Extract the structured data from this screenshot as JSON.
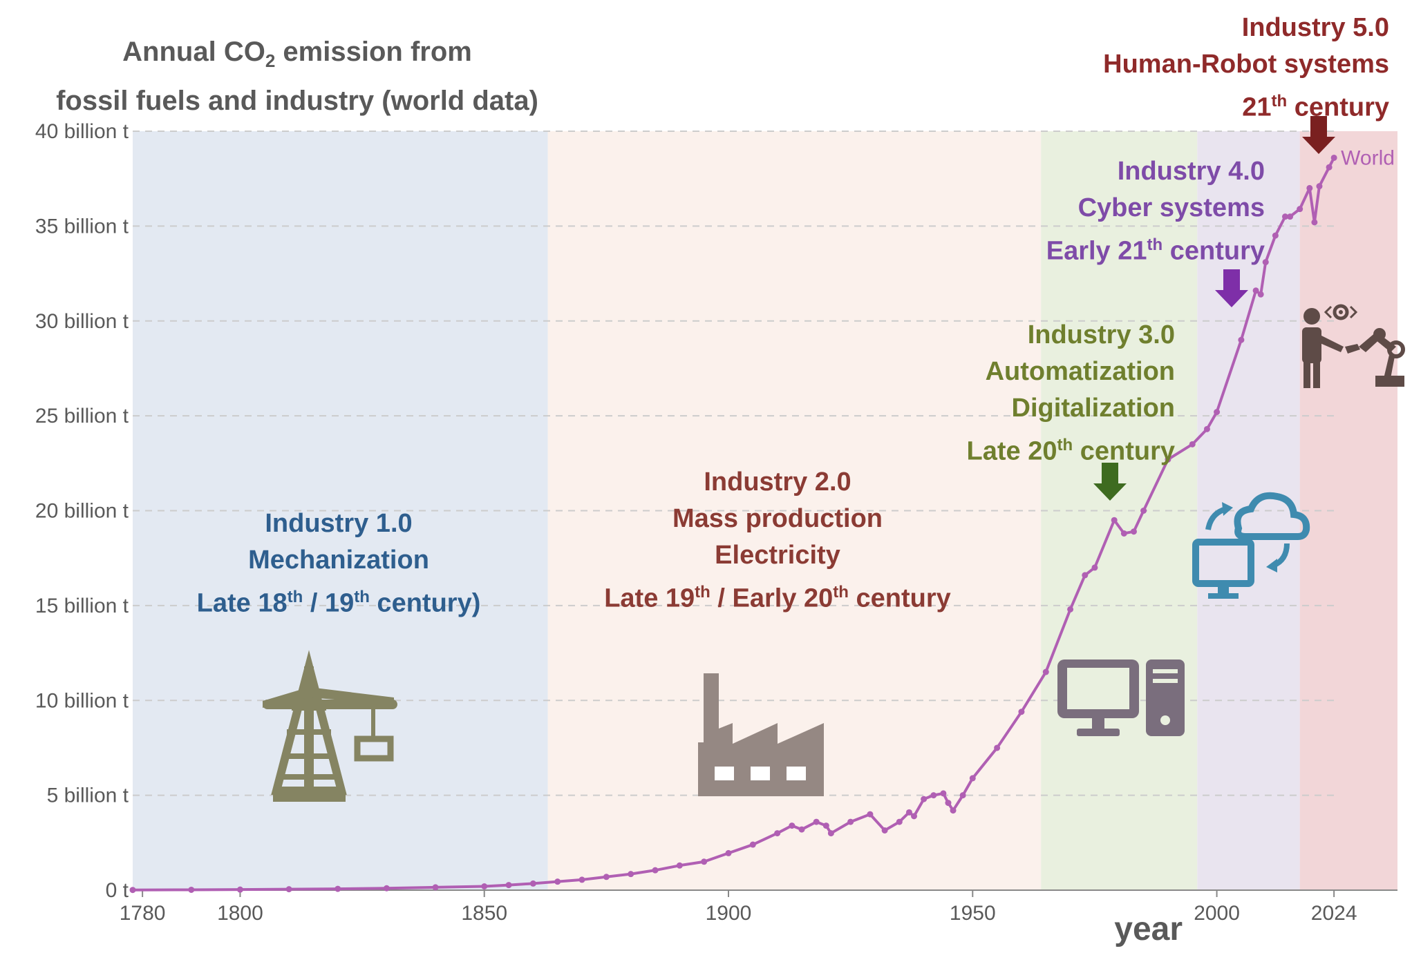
{
  "title": {
    "line1_pre": "Annual CO",
    "line1_sub": "2",
    "line1_post": " emission from",
    "line2": "fossil fuels and industry (world data)"
  },
  "colors": {
    "line": "#B05FB3",
    "era1_bg": "#E3E9F2",
    "era2_bg": "#FBF1EC",
    "era3_bg": "#E9F0DF",
    "era4_bg": "#E9E4EF",
    "era5_bg": "#F2D6D8",
    "grid": "#CCCCCC",
    "tick_text": "#595959",
    "crane": "#858462",
    "factory": "#958883",
    "computer": "#7A6E7D",
    "cloud": "#3F8BAF",
    "robot": "#5E4B47",
    "arrow3": "#3E6B20",
    "arrow4": "#7E2FA8",
    "arrow5": "#7A2020"
  },
  "eras": [
    {
      "id": "era1",
      "lines": [
        "Industry 1.0",
        "Mechanization"
      ],
      "century_pre": "Late 18",
      "century_sup1": "th",
      "century_mid": " / 19",
      "century_sup2": "th",
      "century_post": " century)"
    },
    {
      "id": "era2",
      "lines": [
        "Industry 2.0",
        "Mass production",
        "Electricity"
      ],
      "century_pre": "Late 19",
      "century_sup1": "th",
      "century_mid": " / Early 20",
      "century_sup2": "th",
      "century_post": " century"
    },
    {
      "id": "era3",
      "lines": [
        "Industry 3.0",
        "Automatization",
        "Digitalization"
      ],
      "century_pre": "Late 20",
      "century_sup1": "th",
      "century_post": " century"
    },
    {
      "id": "era4",
      "lines": [
        "Industry 4.0",
        "Cyber systems"
      ],
      "century_pre": "Early 21",
      "century_sup1": "th",
      "century_post": " century"
    },
    {
      "id": "era5",
      "lines": [
        "Industry 5.0",
        "Human-Robot systems"
      ],
      "century_pre": "21",
      "century_sup1": "th",
      "century_post": " century"
    }
  ],
  "icons": [
    "crane-icon",
    "factory-icon",
    "computer-icon",
    "cloud-computing-icon",
    "human-robot-icon"
  ],
  "chart_data": {
    "type": "line",
    "title": "Annual CO2 emission from fossil fuels and industry (world data)",
    "xlabel": "year",
    "ylabel": "",
    "xlim": [
      1778,
      2037
    ],
    "ylim": [
      0,
      40
    ],
    "x_ticks": [
      1780,
      1800,
      1850,
      1900,
      1950,
      2000,
      2024
    ],
    "x_tick_labels": [
      "1780",
      "1800",
      "1850",
      "1900",
      "1950",
      "2000",
      "2024"
    ],
    "y_ticks": [
      0,
      5,
      10,
      15,
      20,
      25,
      30,
      35,
      40
    ],
    "y_tick_labels": [
      "0 t",
      "5 billion t",
      "10 billion t",
      "15 billion t",
      "20 billion t",
      "25 billion t",
      "30 billion t",
      "35 billion t",
      "40 billion t"
    ],
    "grid": true,
    "era_boundaries": [
      1778,
      1863,
      1964,
      1996,
      2017,
      2037
    ],
    "series": [
      {
        "name": "World",
        "x": [
          1778,
          1790,
          1800,
          1810,
          1820,
          1830,
          1840,
          1850,
          1855,
          1860,
          1865,
          1870,
          1875,
          1880,
          1885,
          1890,
          1895,
          1900,
          1905,
          1910,
          1913,
          1915,
          1918,
          1920,
          1921,
          1925,
          1929,
          1932,
          1935,
          1937,
          1938,
          1940,
          1942,
          1944,
          1945,
          1946,
          1948,
          1950,
          1955,
          1960,
          1965,
          1970,
          1973,
          1975,
          1979,
          1981,
          1983,
          1985,
          1990,
          1995,
          1998,
          2000,
          2005,
          2008,
          2009,
          2010,
          2012,
          2014,
          2015,
          2017,
          2019,
          2020,
          2021,
          2023,
          2024
        ],
        "values": [
          0.01,
          0.02,
          0.03,
          0.05,
          0.07,
          0.1,
          0.15,
          0.2,
          0.27,
          0.35,
          0.45,
          0.55,
          0.7,
          0.85,
          1.05,
          1.3,
          1.5,
          1.95,
          2.4,
          3.0,
          3.4,
          3.2,
          3.6,
          3.4,
          3.0,
          3.6,
          4.0,
          3.15,
          3.6,
          4.1,
          3.9,
          4.8,
          5.0,
          5.1,
          4.6,
          4.2,
          5.0,
          5.9,
          7.5,
          9.4,
          11.5,
          14.8,
          16.6,
          17.0,
          19.5,
          18.8,
          18.9,
          20.0,
          22.7,
          23.5,
          24.3,
          25.2,
          29.0,
          31.6,
          31.4,
          33.1,
          34.5,
          35.5,
          35.5,
          35.9,
          37.0,
          35.2,
          37.1,
          38.1,
          38.6
        ]
      }
    ]
  }
}
